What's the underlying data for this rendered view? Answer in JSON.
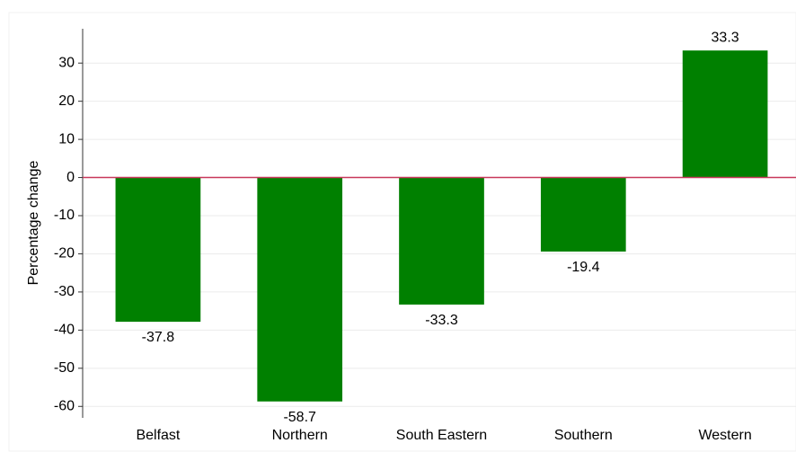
{
  "chart_data": {
    "type": "bar",
    "ylabel": "Percentage change",
    "categories": [
      "Belfast",
      "Northern",
      "South Eastern",
      "Southern",
      "Western"
    ],
    "values": [
      -37.8,
      -58.7,
      -33.3,
      -19.4,
      33.3
    ],
    "color": "#008000",
    "ylim": [
      -63,
      39
    ],
    "yticks": [
      -60,
      -50,
      -40,
      -30,
      -20,
      -10,
      0,
      10,
      20,
      30
    ],
    "grid": true,
    "zero_line_color": "#c8385a"
  }
}
